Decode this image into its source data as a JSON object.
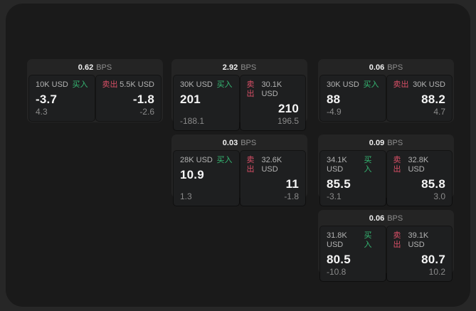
{
  "labels": {
    "bps": "BPS",
    "buy": "买入",
    "sell": "卖出"
  },
  "colors": {
    "buy_green": "#35b873",
    "sell_red": "#d84f66",
    "window_bg": "#1a1a1a",
    "card_bg": "#242424",
    "panel_bg": "#1e1f20"
  },
  "cards": [
    {
      "bps": "0.62",
      "buy": {
        "size": "10K USD",
        "value": "-3.7",
        "delta": "4.3"
      },
      "sell": {
        "size": "5.5K USD",
        "value": "-1.8",
        "delta": "-2.6"
      }
    },
    {
      "bps": "2.92",
      "buy": {
        "size": "30K USD",
        "value": "201",
        "delta": "-188.1"
      },
      "sell": {
        "size": "30.1K USD",
        "value": "210",
        "delta": "196.5"
      }
    },
    {
      "bps": "0.06",
      "buy": {
        "size": "30K USD",
        "value": "88",
        "delta": "-4.9"
      },
      "sell": {
        "size": "30K USD",
        "value": "88.2",
        "delta": "4.7"
      }
    },
    {
      "bps": "0.03",
      "buy": {
        "size": "28K USD",
        "value": "10.9",
        "delta": "1.3"
      },
      "sell": {
        "size": "32.6K USD",
        "value": "11",
        "delta": "-1.8"
      }
    },
    {
      "bps": "0.09",
      "buy": {
        "size": "34.1K USD",
        "value": "85.5",
        "delta": "-3.1"
      },
      "sell": {
        "size": "32.8K USD",
        "value": "85.8",
        "delta": "3.0"
      }
    },
    {
      "bps": "0.06",
      "buy": {
        "size": "31.8K USD",
        "value": "80.5",
        "delta": "-10.8"
      },
      "sell": {
        "size": "39.1K USD",
        "value": "80.7",
        "delta": "10.2"
      }
    }
  ]
}
